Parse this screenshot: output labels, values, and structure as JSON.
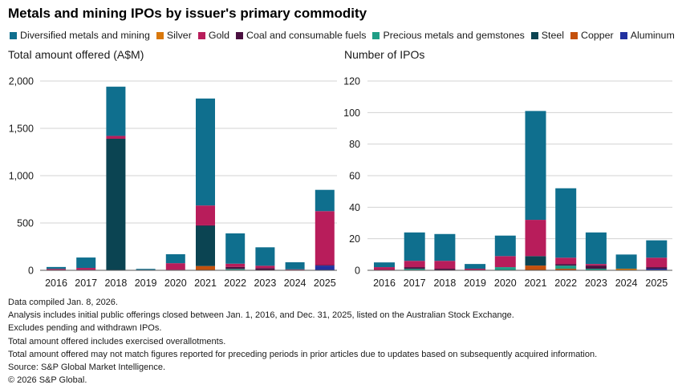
{
  "title": "Metals and mining IPOs by issuer's primary commodity",
  "legend": [
    {
      "name": "Diversified metals and mining",
      "color": "#0f6f8e"
    },
    {
      "name": "Silver",
      "color": "#d9780c"
    },
    {
      "name": "Gold",
      "color": "#b81d5b"
    },
    {
      "name": "Coal and consumable fuels",
      "color": "#4a1040"
    },
    {
      "name": "Precious metals and gemstones",
      "color": "#1f9e86"
    },
    {
      "name": "Steel",
      "color": "#0b4452"
    },
    {
      "name": "Copper",
      "color": "#c4500c"
    },
    {
      "name": "Aluminum",
      "color": "#2231a0"
    }
  ],
  "chart_data": [
    {
      "type": "bar",
      "stacked": true,
      "title": "Total amount offered (A$M)",
      "categories": [
        "2016",
        "2017",
        "2018",
        "2019",
        "2020",
        "2021",
        "2022",
        "2023",
        "2024",
        "2025"
      ],
      "ylim": [
        0,
        2000
      ],
      "yticks": [
        0,
        500,
        1000,
        1500,
        2000
      ],
      "ytick_labels": [
        "0",
        "500",
        "1,000",
        "1,500",
        "2,000"
      ],
      "grid": true,
      "series": [
        {
          "name": "Aluminum",
          "values": [
            0,
            0,
            0,
            0,
            0,
            0,
            0,
            0,
            0,
            50
          ]
        },
        {
          "name": "Copper",
          "values": [
            0,
            0,
            0,
            0,
            0,
            45,
            5,
            0,
            0,
            0
          ]
        },
        {
          "name": "Steel",
          "values": [
            0,
            0,
            1390,
            0,
            0,
            425,
            0,
            0,
            0,
            0
          ]
        },
        {
          "name": "Precious metals and gemstones",
          "values": [
            0,
            3,
            0,
            0,
            3,
            0,
            10,
            3,
            0,
            0
          ]
        },
        {
          "name": "Coal and consumable fuels",
          "values": [
            2,
            2,
            0,
            0,
            2,
            5,
            20,
            20,
            3,
            5
          ]
        },
        {
          "name": "Silver",
          "values": [
            0,
            0,
            0,
            0,
            0,
            0,
            0,
            0,
            2,
            0
          ]
        },
        {
          "name": "Gold",
          "values": [
            13,
            20,
            30,
            5,
            70,
            210,
            35,
            25,
            5,
            570
          ]
        },
        {
          "name": "Diversified metals and mining",
          "values": [
            20,
            110,
            520,
            10,
            95,
            1130,
            320,
            195,
            75,
            225
          ]
        }
      ]
    },
    {
      "type": "bar",
      "stacked": true,
      "title": "Number of IPOs",
      "categories": [
        "2016",
        "2017",
        "2018",
        "2019",
        "2020",
        "2021",
        "2022",
        "2023",
        "2024",
        "2025"
      ],
      "ylim": [
        0,
        120
      ],
      "yticks": [
        0,
        20,
        40,
        60,
        80,
        100,
        120
      ],
      "ytick_labels": [
        "0",
        "20",
        "40",
        "60",
        "80",
        "100",
        "120"
      ],
      "grid": true,
      "series": [
        {
          "name": "Aluminum",
          "values": [
            0,
            0,
            0,
            0,
            0,
            0,
            0,
            0,
            0,
            1
          ]
        },
        {
          "name": "Copper",
          "values": [
            0,
            0,
            0,
            0,
            0,
            3,
            1,
            0,
            0,
            0
          ]
        },
        {
          "name": "Steel",
          "values": [
            0,
            0,
            0,
            0,
            0,
            6,
            0,
            0,
            0,
            0
          ]
        },
        {
          "name": "Precious metals and gemstones",
          "values": [
            0,
            1,
            0,
            0,
            2,
            0,
            2,
            1,
            0,
            0
          ]
        },
        {
          "name": "Coal and consumable fuels",
          "values": [
            0,
            1,
            1,
            0,
            0,
            0,
            1,
            2,
            0,
            1
          ]
        },
        {
          "name": "Silver",
          "values": [
            0,
            0,
            0,
            0,
            0,
            0,
            0,
            0,
            1,
            0
          ]
        },
        {
          "name": "Gold",
          "values": [
            2,
            4,
            5,
            1,
            7,
            23,
            4,
            1,
            0,
            6
          ]
        },
        {
          "name": "Diversified metals and mining",
          "values": [
            3,
            18,
            17,
            3,
            13,
            69,
            44,
            20,
            9,
            11
          ]
        }
      ]
    }
  ],
  "notes": [
    "Data compiled Jan. 8, 2026.",
    "Analysis includes initial public offerings closed between Jan. 1, 2016, and Dec. 31, 2025, listed on the Australian Stock Exchange.",
    "Excludes pending and withdrawn IPOs.",
    "Total amount offered includes exercised overallotments.",
    "Total amount offered may not match figures reported for preceding periods in prior articles due to updates based on subsequently acquired information.",
    "Source: S&P Global Market Intelligence.",
    "© 2026 S&P Global."
  ]
}
